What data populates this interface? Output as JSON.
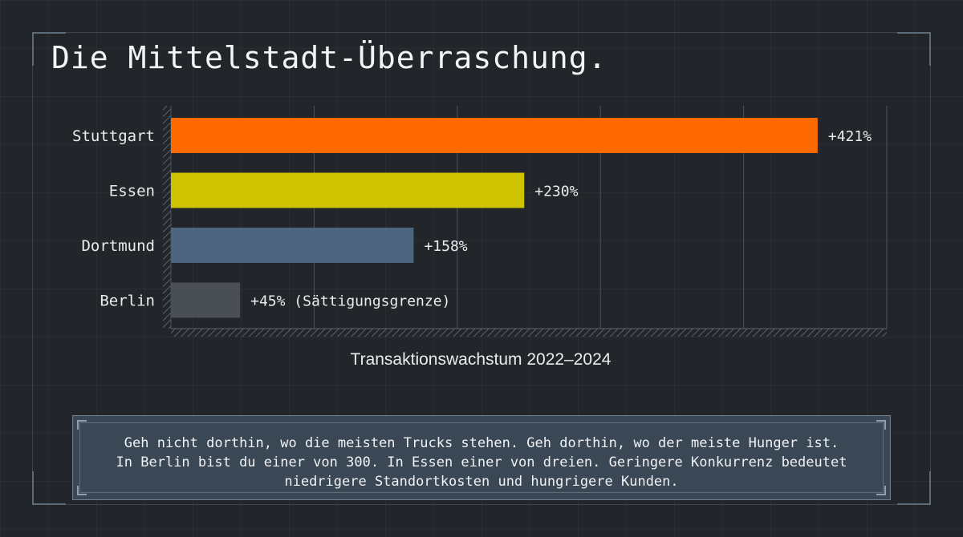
{
  "title": "Die Mittelstadt-Überraschung.",
  "chart_data": {
    "type": "bar",
    "orientation": "horizontal",
    "categories": [
      "Stuttgart",
      "Essen",
      "Dortmund",
      "Berlin"
    ],
    "values": [
      421,
      230,
      158,
      45
    ],
    "value_labels": [
      "+421%",
      "+230%",
      "+158%",
      "+45% (Sättigungsgrenze)"
    ],
    "colors": [
      "#ff6a00",
      "#cdc300",
      "#4e6580",
      "#4a4f56"
    ],
    "xlabel": "Transaktionswachstum 2022–2024",
    "xlim": [
      0,
      466
    ],
    "grid": true
  },
  "caption": {
    "lines": [
      "Geh nicht dorthin, wo die meisten Trucks stehen. Geh dorthin, wo der meiste Hunger ist.",
      "In Berlin bist du einer von 300. In Essen einer von dreien. Geringere Konkurrenz bedeutet",
      "niedrigere Standortkosten und hungrigere Kunden."
    ]
  }
}
